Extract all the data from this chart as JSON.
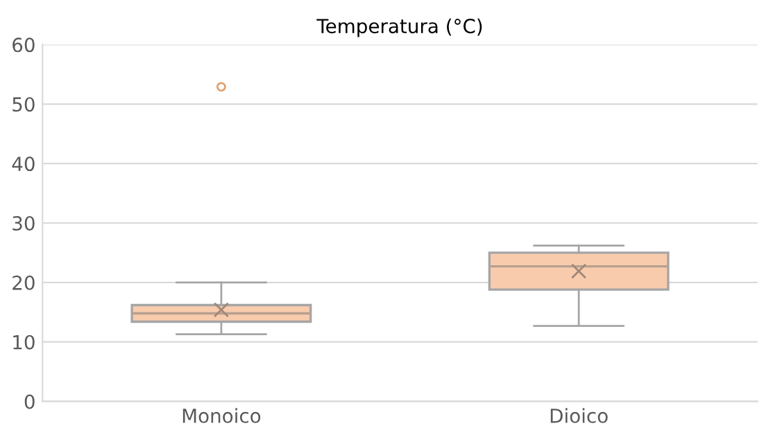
{
  "chart_data": {
    "type": "box",
    "title": "Temperatura (°C)",
    "categories": [
      "Monoico",
      "Dioico"
    ],
    "color": "#f8cbad",
    "boxes": [
      {
        "low": 11.3,
        "q1": 13.4,
        "median": 14.8,
        "q3": 16.2,
        "high": 20.0,
        "mean": 15.4,
        "outliers": [
          52.9
        ]
      },
      {
        "low": 12.7,
        "q1": 18.8,
        "median": 22.7,
        "q3": 25.0,
        "high": 26.2,
        "mean": 21.9
      }
    ],
    "ylim": [
      0,
      60
    ],
    "yticks": [
      0,
      10,
      20,
      30,
      40,
      50,
      60
    ],
    "grid": "y"
  }
}
